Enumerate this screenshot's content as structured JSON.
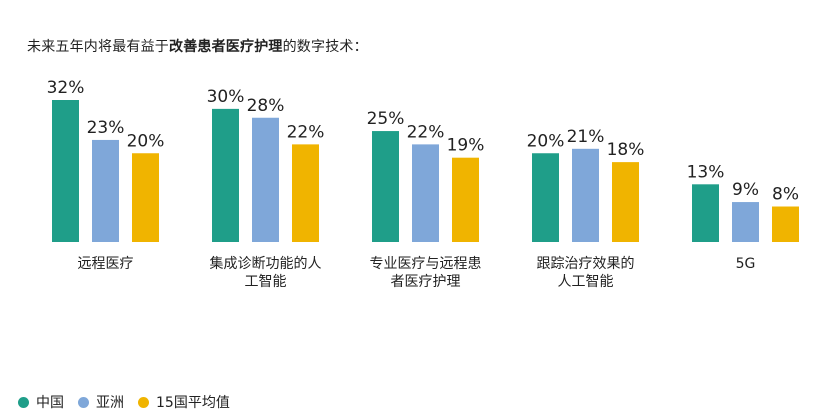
{
  "title": {
    "prefix": "未来五年内将最有益于",
    "emphasis": "改善患者医疗护理",
    "suffix": "的数字技术："
  },
  "colors": {
    "series_0": "#1f9e89",
    "series_1": "#7fa7d9",
    "series_2": "#f0b400",
    "text": "#222222"
  },
  "chart_data": {
    "type": "bar",
    "categories": [
      [
        "远程医疗"
      ],
      [
        "集成诊断功能的人",
        "工智能"
      ],
      [
        "专业医疗与远程患",
        "者医疗护理"
      ],
      [
        "跟踪治疗效果的",
        "人工智能"
      ],
      [
        "5G"
      ]
    ],
    "series": [
      {
        "name": "中国",
        "values": [
          32,
          30,
          25,
          20,
          13
        ]
      },
      {
        "name": "亚洲",
        "values": [
          23,
          28,
          22,
          21,
          9
        ]
      },
      {
        "name": "15国平均值",
        "values": [
          20,
          22,
          19,
          18,
          8
        ]
      }
    ],
    "value_suffix": "%",
    "ylim": [
      0,
      32
    ],
    "grid": false,
    "legend_position": "bottom-left"
  }
}
